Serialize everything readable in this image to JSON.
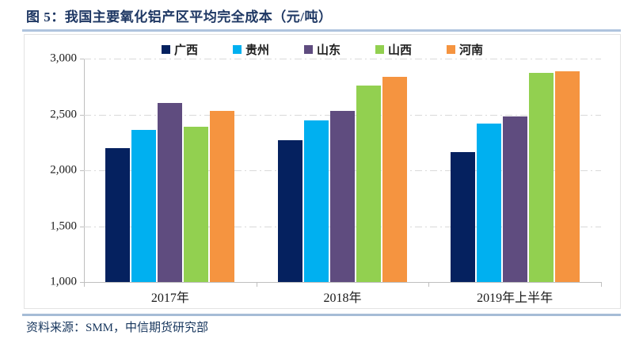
{
  "title": "图 5：我国主要氧化铝产区平均完全成本（元/吨）",
  "source": "资料来源：SMM，中信期货研究部",
  "colors": {
    "title_text": "#1F3864",
    "source_text": "#17365D",
    "divider_blue": "#AFC4DE",
    "gridline": "#D9D9D9",
    "axis": "#BFBFBF"
  },
  "chart_data": {
    "type": "bar",
    "title": "我国主要氧化铝产区平均完全成本（元/吨）",
    "categories": [
      "2017年",
      "2018年",
      "2019年上半年"
    ],
    "series": [
      {
        "name": "广西",
        "color": "#05215F",
        "values": [
          2200,
          2270,
          2160
        ]
      },
      {
        "name": "贵州",
        "color": "#00B0F0",
        "values": [
          2360,
          2450,
          2420
        ]
      },
      {
        "name": "山东",
        "color": "#5F4C7F",
        "values": [
          2600,
          2530,
          2480
        ]
      },
      {
        "name": "山西",
        "color": "#92D050",
        "values": [
          2390,
          2760,
          2870
        ]
      },
      {
        "name": "河南",
        "color": "#F59440",
        "values": [
          2530,
          2840,
          2890
        ]
      }
    ],
    "ylim": [
      1000,
      3000
    ],
    "yticks": [
      1000,
      1500,
      2000,
      2500,
      3000
    ],
    "ytick_labels": [
      "1,000",
      "1,500",
      "2,000",
      "2,500",
      "3,000"
    ],
    "xlabel": "",
    "ylabel": "",
    "grid": "horizontal dash-dot",
    "legend_position": "top",
    "bars_start_at": 1000
  }
}
